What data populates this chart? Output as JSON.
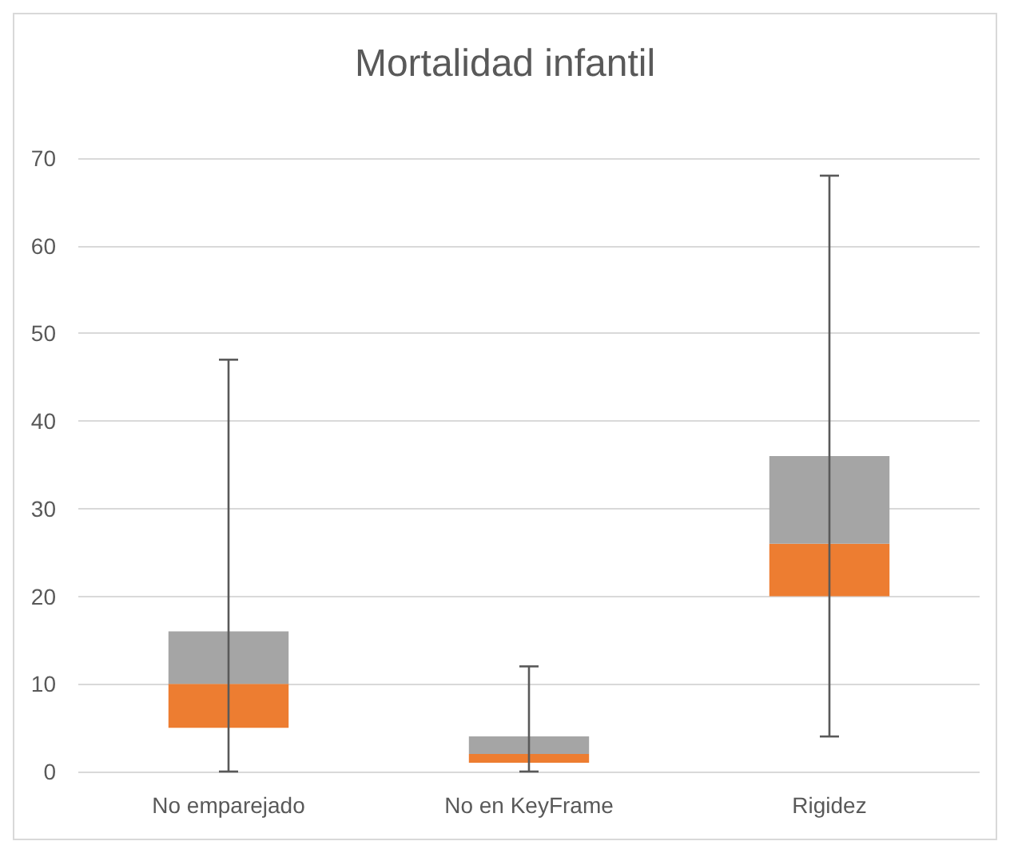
{
  "chart_data": {
    "type": "box",
    "title": "Mortalidad infantil",
    "categories": [
      "No emparejado",
      "No en KeyFrame",
      "Rigidez"
    ],
    "series": [
      {
        "color": "#ed7d31",
        "boxes": [
          {
            "low": 0,
            "q1": 5,
            "median": 10,
            "q3": 16,
            "high": 47
          },
          {
            "low": 0,
            "q1": 1,
            "median": 2,
            "q3": 4,
            "high": 12
          },
          {
            "low": 4,
            "q1": 20,
            "median": 26,
            "q3": 36,
            "high": 68
          }
        ]
      }
    ],
    "ylim": [
      0,
      70
    ],
    "yticks": [
      0,
      10,
      20,
      30,
      40,
      50,
      60,
      70
    ],
    "grid": "y"
  }
}
